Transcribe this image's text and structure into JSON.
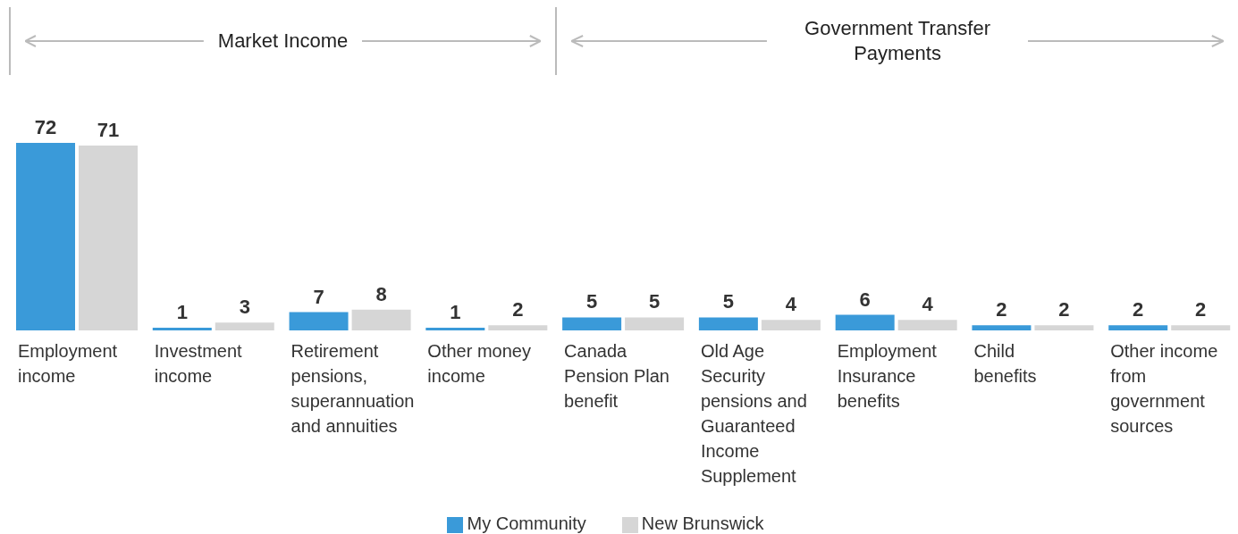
{
  "chart_data": {
    "type": "bar",
    "categories": [
      "Employment income",
      "Investment income",
      "Retirement pensions, superannuation and annuities",
      "Other money income",
      "Canada Pension Plan benefit",
      "Old Age Security pensions and Guaranteed Income Supplement",
      "Employment Insurance benefits",
      "Child benefits",
      "Other income from government sources"
    ],
    "series": [
      {
        "name": "My Community",
        "color": "#3a9ad9",
        "values": [
          72,
          1,
          7,
          1,
          5,
          5,
          6,
          2,
          2
        ]
      },
      {
        "name": "New Brunswick",
        "color": "#d6d6d6",
        "values": [
          71,
          3,
          8,
          2,
          5,
          4,
          4,
          2,
          2
        ]
      }
    ],
    "annotations": [
      "Market Income",
      "Government Transfer Payments"
    ],
    "data_labels": true,
    "grid": false,
    "legend": "bottom"
  }
}
